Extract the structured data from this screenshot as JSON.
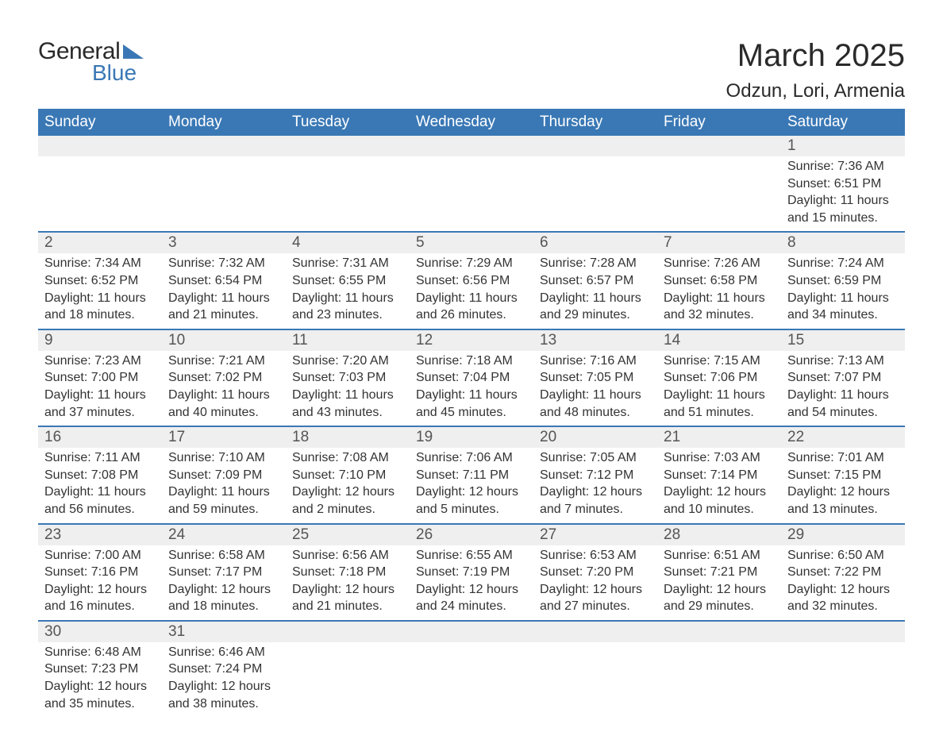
{
  "brand": {
    "word1": "General",
    "word2": "Blue",
    "accent_color": "#3a78b5"
  },
  "title": "March 2025",
  "location": "Odzun, Lori, Armenia",
  "header_bg": "#3a78b5",
  "header_fg": "#ffffff",
  "daynum_bg": "#efefef",
  "border_color": "#3a78b5",
  "text_color": "#333333",
  "days_of_week": [
    "Sunday",
    "Monday",
    "Tuesday",
    "Wednesday",
    "Thursday",
    "Friday",
    "Saturday"
  ],
  "weeks": [
    [
      null,
      null,
      null,
      null,
      null,
      null,
      {
        "n": "1",
        "sunrise": "7:36 AM",
        "sunset": "6:51 PM",
        "daylight": "11 hours and 15 minutes."
      }
    ],
    [
      {
        "n": "2",
        "sunrise": "7:34 AM",
        "sunset": "6:52 PM",
        "daylight": "11 hours and 18 minutes."
      },
      {
        "n": "3",
        "sunrise": "7:32 AM",
        "sunset": "6:54 PM",
        "daylight": "11 hours and 21 minutes."
      },
      {
        "n": "4",
        "sunrise": "7:31 AM",
        "sunset": "6:55 PM",
        "daylight": "11 hours and 23 minutes."
      },
      {
        "n": "5",
        "sunrise": "7:29 AM",
        "sunset": "6:56 PM",
        "daylight": "11 hours and 26 minutes."
      },
      {
        "n": "6",
        "sunrise": "7:28 AM",
        "sunset": "6:57 PM",
        "daylight": "11 hours and 29 minutes."
      },
      {
        "n": "7",
        "sunrise": "7:26 AM",
        "sunset": "6:58 PM",
        "daylight": "11 hours and 32 minutes."
      },
      {
        "n": "8",
        "sunrise": "7:24 AM",
        "sunset": "6:59 PM",
        "daylight": "11 hours and 34 minutes."
      }
    ],
    [
      {
        "n": "9",
        "sunrise": "7:23 AM",
        "sunset": "7:00 PM",
        "daylight": "11 hours and 37 minutes."
      },
      {
        "n": "10",
        "sunrise": "7:21 AM",
        "sunset": "7:02 PM",
        "daylight": "11 hours and 40 minutes."
      },
      {
        "n": "11",
        "sunrise": "7:20 AM",
        "sunset": "7:03 PM",
        "daylight": "11 hours and 43 minutes."
      },
      {
        "n": "12",
        "sunrise": "7:18 AM",
        "sunset": "7:04 PM",
        "daylight": "11 hours and 45 minutes."
      },
      {
        "n": "13",
        "sunrise": "7:16 AM",
        "sunset": "7:05 PM",
        "daylight": "11 hours and 48 minutes."
      },
      {
        "n": "14",
        "sunrise": "7:15 AM",
        "sunset": "7:06 PM",
        "daylight": "11 hours and 51 minutes."
      },
      {
        "n": "15",
        "sunrise": "7:13 AM",
        "sunset": "7:07 PM",
        "daylight": "11 hours and 54 minutes."
      }
    ],
    [
      {
        "n": "16",
        "sunrise": "7:11 AM",
        "sunset": "7:08 PM",
        "daylight": "11 hours and 56 minutes."
      },
      {
        "n": "17",
        "sunrise": "7:10 AM",
        "sunset": "7:09 PM",
        "daylight": "11 hours and 59 minutes."
      },
      {
        "n": "18",
        "sunrise": "7:08 AM",
        "sunset": "7:10 PM",
        "daylight": "12 hours and 2 minutes."
      },
      {
        "n": "19",
        "sunrise": "7:06 AM",
        "sunset": "7:11 PM",
        "daylight": "12 hours and 5 minutes."
      },
      {
        "n": "20",
        "sunrise": "7:05 AM",
        "sunset": "7:12 PM",
        "daylight": "12 hours and 7 minutes."
      },
      {
        "n": "21",
        "sunrise": "7:03 AM",
        "sunset": "7:14 PM",
        "daylight": "12 hours and 10 minutes."
      },
      {
        "n": "22",
        "sunrise": "7:01 AM",
        "sunset": "7:15 PM",
        "daylight": "12 hours and 13 minutes."
      }
    ],
    [
      {
        "n": "23",
        "sunrise": "7:00 AM",
        "sunset": "7:16 PM",
        "daylight": "12 hours and 16 minutes."
      },
      {
        "n": "24",
        "sunrise": "6:58 AM",
        "sunset": "7:17 PM",
        "daylight": "12 hours and 18 minutes."
      },
      {
        "n": "25",
        "sunrise": "6:56 AM",
        "sunset": "7:18 PM",
        "daylight": "12 hours and 21 minutes."
      },
      {
        "n": "26",
        "sunrise": "6:55 AM",
        "sunset": "7:19 PM",
        "daylight": "12 hours and 24 minutes."
      },
      {
        "n": "27",
        "sunrise": "6:53 AM",
        "sunset": "7:20 PM",
        "daylight": "12 hours and 27 minutes."
      },
      {
        "n": "28",
        "sunrise": "6:51 AM",
        "sunset": "7:21 PM",
        "daylight": "12 hours and 29 minutes."
      },
      {
        "n": "29",
        "sunrise": "6:50 AM",
        "sunset": "7:22 PM",
        "daylight": "12 hours and 32 minutes."
      }
    ],
    [
      {
        "n": "30",
        "sunrise": "6:48 AM",
        "sunset": "7:23 PM",
        "daylight": "12 hours and 35 minutes."
      },
      {
        "n": "31",
        "sunrise": "6:46 AM",
        "sunset": "7:24 PM",
        "daylight": "12 hours and 38 minutes."
      },
      null,
      null,
      null,
      null,
      null
    ]
  ],
  "labels": {
    "sunrise": "Sunrise:",
    "sunset": "Sunset:",
    "daylight": "Daylight:"
  }
}
